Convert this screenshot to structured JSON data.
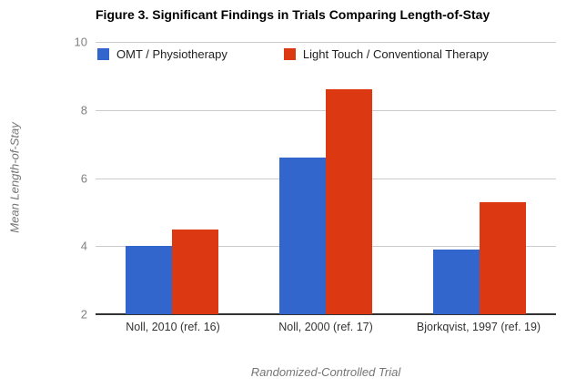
{
  "figure_title": "Figure 3. Significant Findings in Trials Comparing Length-of-Stay",
  "legend": {
    "items": [
      {
        "label": "OMT / Physiotherapy",
        "color": "#3366cc",
        "swatch_icon": "blue-square-swatch"
      },
      {
        "label": "Light Touch / Conventional Therapy",
        "color": "#dc3912",
        "swatch_icon": "red-square-swatch"
      }
    ]
  },
  "colors": {
    "series_blue": "#3366cc",
    "series_red": "#dc3912",
    "gridline": "#cccccc",
    "axis_line": "#333333",
    "axis_text": "#808080",
    "category_text": "#333333",
    "axis_title_text": "#757575"
  },
  "chart_data": {
    "type": "bar",
    "title": "Figure 3. Significant Findings in Trials Comparing Length-of-Stay",
    "xlabel": "Randomized-Controlled Trial",
    "ylabel": "Mean Length-of-Stay",
    "categories": [
      "Noll, 2010 (ref. 16)",
      "Noll, 2000 (ref. 17)",
      "Bjorkqvist, 1997 (ref. 19)"
    ],
    "series": [
      {
        "name": "OMT / Physiotherapy",
        "color": "#3366cc",
        "values": [
          4.0,
          6.6,
          3.9
        ]
      },
      {
        "name": "Light Touch / Conventional Therapy",
        "color": "#dc3912",
        "values": [
          4.5,
          8.6,
          5.3
        ]
      }
    ],
    "ylim": [
      2,
      10
    ],
    "yticks": [
      2,
      4,
      6,
      8,
      10
    ],
    "grid": true,
    "legend_position": "top"
  }
}
